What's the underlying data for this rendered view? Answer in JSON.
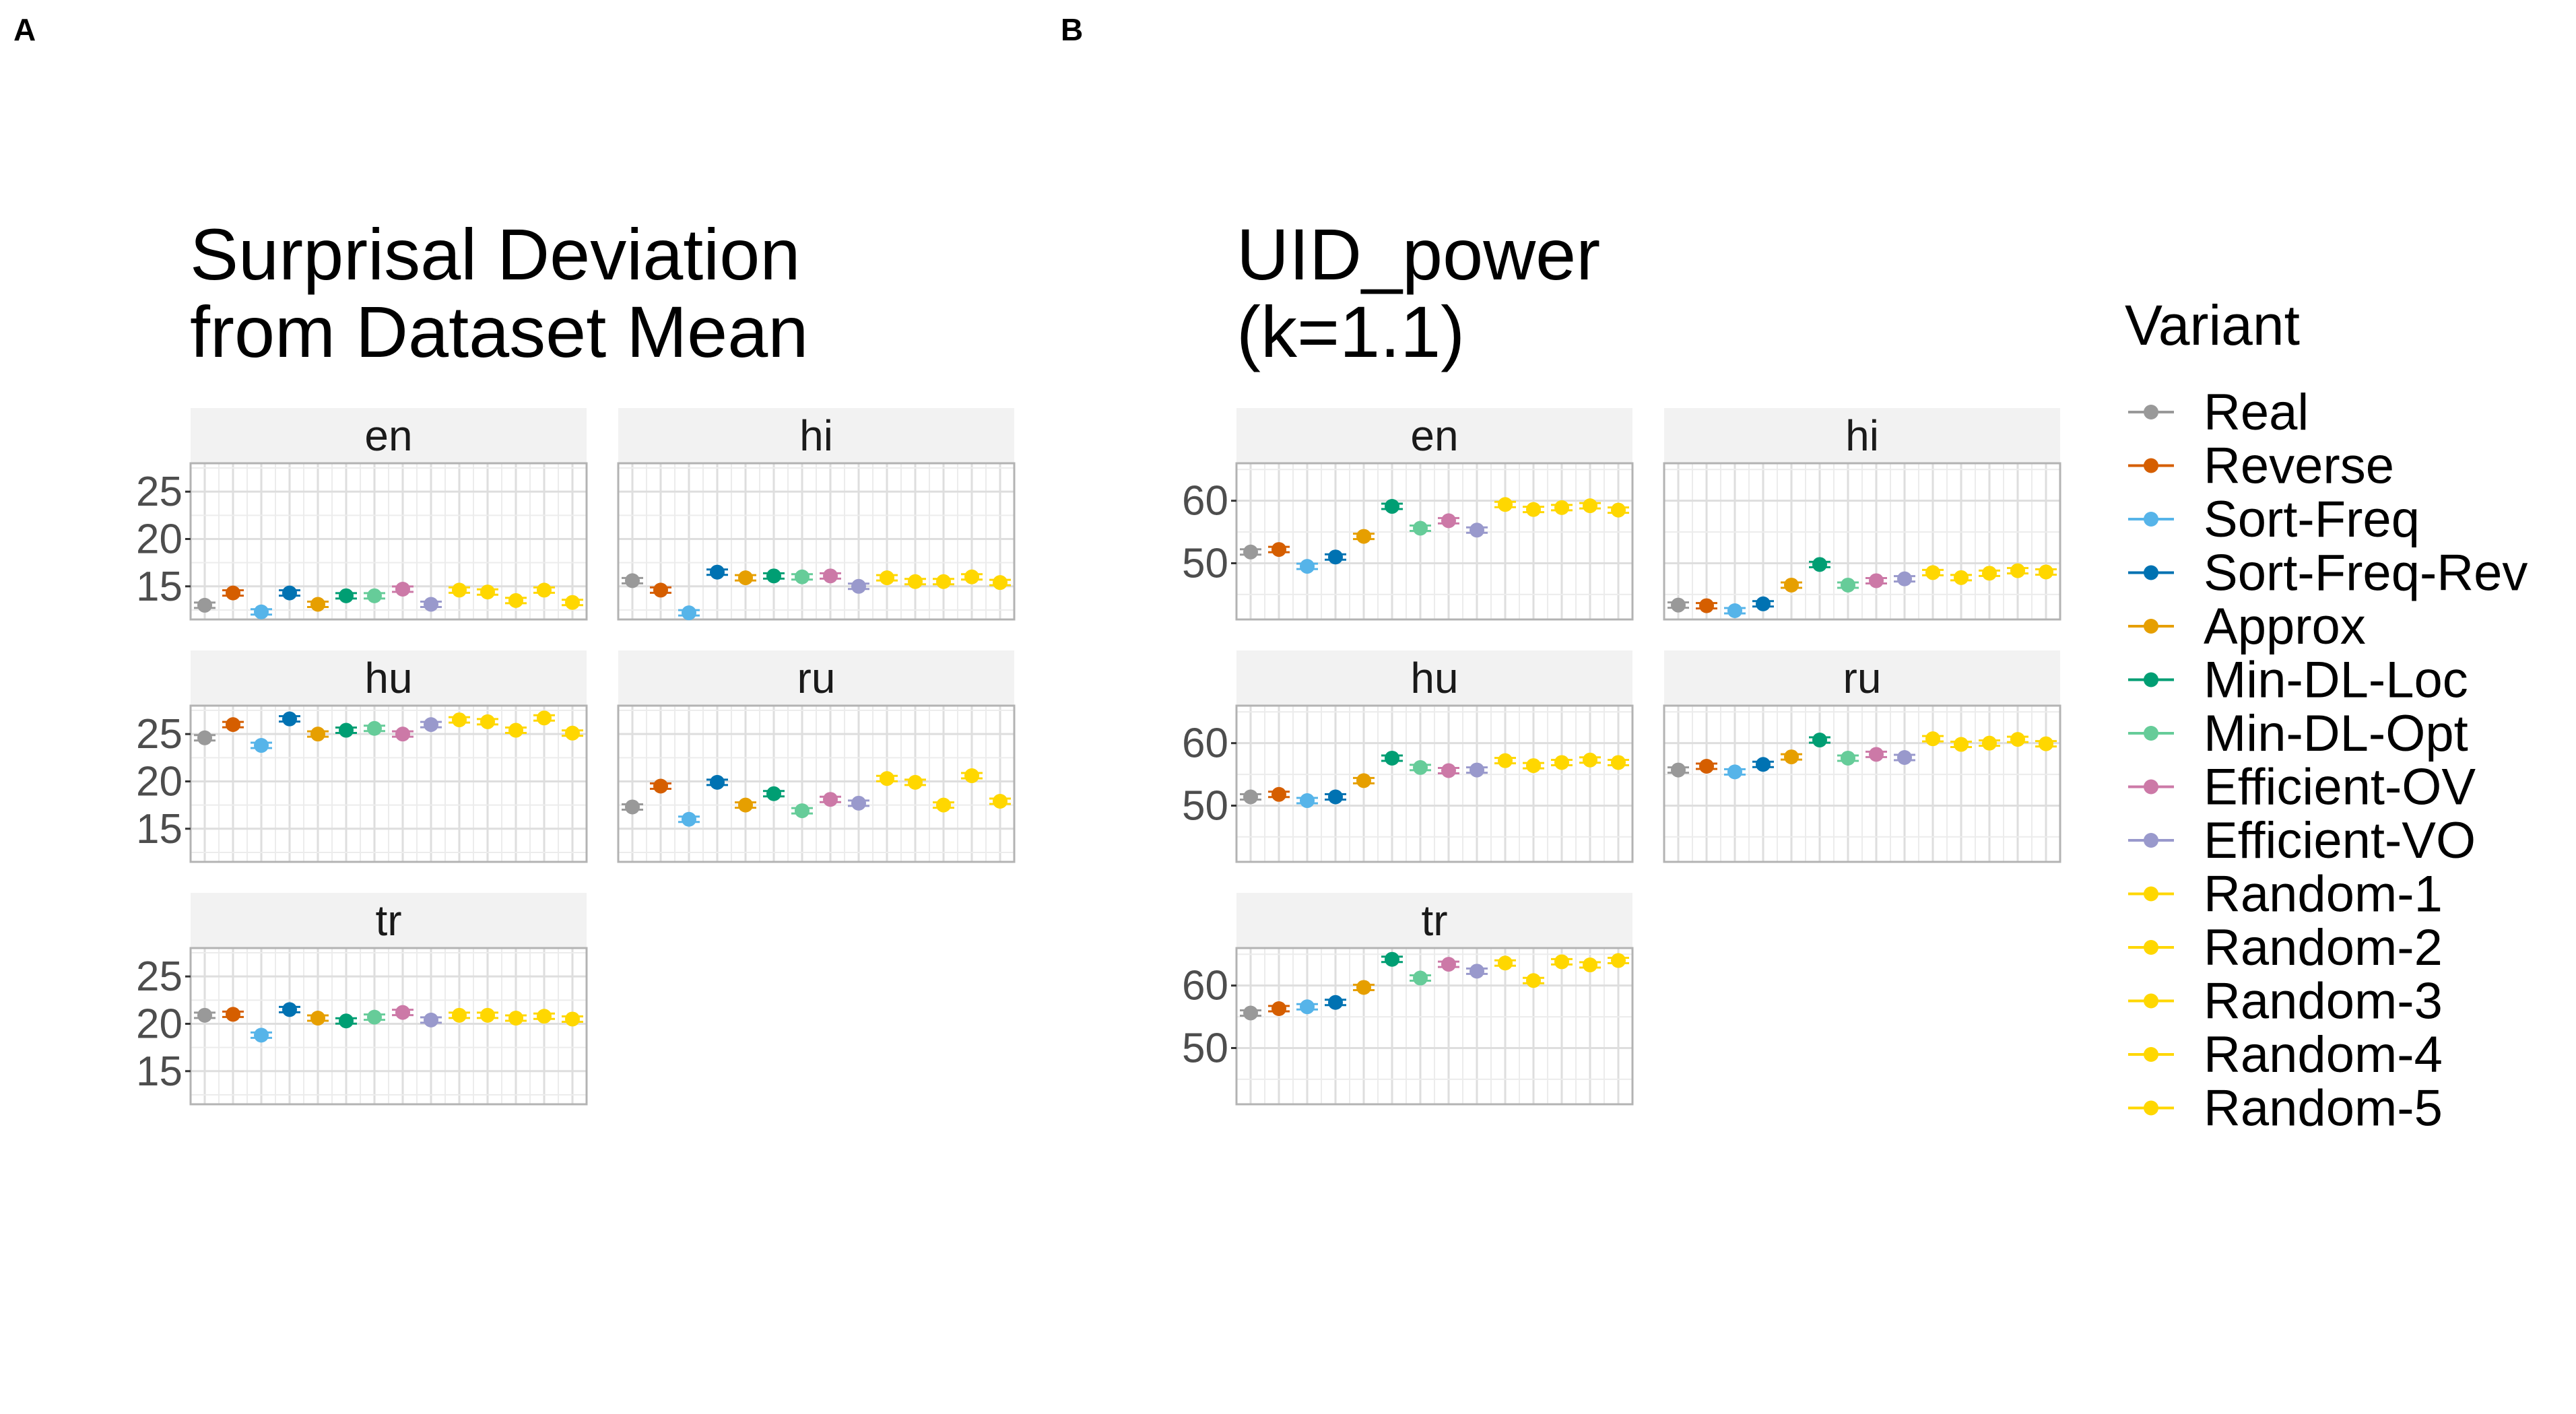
{
  "figure": {
    "panel_a_label": "A",
    "panel_b_label": "B"
  },
  "legend": {
    "title": "Variant",
    "items": [
      {
        "label": "Real",
        "color": "#999999"
      },
      {
        "label": "Reverse",
        "color": "#D55E00"
      },
      {
        "label": "Sort-Freq",
        "color": "#56B4E9"
      },
      {
        "label": "Sort-Freq-Rev",
        "color": "#0072B2"
      },
      {
        "label": "Approx",
        "color": "#E69F00"
      },
      {
        "label": "Min-DL-Loc",
        "color": "#009E73"
      },
      {
        "label": "Min-DL-Opt",
        "color": "#66CC99"
      },
      {
        "label": "Efficient-OV",
        "color": "#CC79A7"
      },
      {
        "label": "Efficient-VO",
        "color": "#9999CC"
      },
      {
        "label": "Random-1",
        "color": "#FFD700"
      },
      {
        "label": "Random-2",
        "color": "#FFD700"
      },
      {
        "label": "Random-3",
        "color": "#FFD700"
      },
      {
        "label": "Random-4",
        "color": "#FFD700"
      },
      {
        "label": "Random-5",
        "color": "#FFD700"
      }
    ]
  },
  "chart_data": [
    {
      "type": "scatter",
      "title_lines": [
        "Surprisal Deviation",
        "from Dataset Mean"
      ],
      "categories": [
        "Real",
        "Reverse",
        "Sort-Freq",
        "Sort-Freq-Rev",
        "Approx",
        "Min-DL-Loc",
        "Min-DL-Opt",
        "Efficient-OV",
        "Efficient-VO",
        "Random-1",
        "Random-2",
        "Random-3",
        "Random-4",
        "Random-5"
      ],
      "yticks": [
        15,
        20,
        25
      ],
      "ylim": [
        11.5,
        28
      ],
      "grid": true,
      "facet_layout": "3 rows x 2 columns",
      "panels": [
        {
          "label": "en",
          "values": [
            13.0,
            14.3,
            12.3,
            14.3,
            13.1,
            14.0,
            14.0,
            14.7,
            13.1,
            14.6,
            14.4,
            13.5,
            14.6,
            13.3
          ]
        },
        {
          "label": "hi",
          "values": [
            15.6,
            14.6,
            12.2,
            16.5,
            15.9,
            16.1,
            16.0,
            16.1,
            15.0,
            15.9,
            15.5,
            15.5,
            16.0,
            15.4
          ]
        },
        {
          "label": "hu",
          "values": [
            24.6,
            26.0,
            23.8,
            26.6,
            25.0,
            25.4,
            25.6,
            25.0,
            26.0,
            26.5,
            26.3,
            25.4,
            26.7,
            25.1
          ]
        },
        {
          "label": "ru",
          "values": [
            17.3,
            19.5,
            16.0,
            19.9,
            17.5,
            18.7,
            16.9,
            18.1,
            17.7,
            20.3,
            19.9,
            17.5,
            20.6,
            17.9
          ]
        },
        {
          "label": "tr",
          "values": [
            20.9,
            21.0,
            18.8,
            21.5,
            20.6,
            20.3,
            20.7,
            21.2,
            20.4,
            20.9,
            20.9,
            20.6,
            20.8,
            20.5
          ]
        }
      ]
    },
    {
      "type": "scatter",
      "title_lines": [
        "UID_power",
        "(k=1.1)"
      ],
      "categories": [
        "Real",
        "Reverse",
        "Sort-Freq",
        "Sort-Freq-Rev",
        "Approx",
        "Min-DL-Loc",
        "Min-DL-Opt",
        "Efficient-OV",
        "Efficient-VO",
        "Random-1",
        "Random-2",
        "Random-3",
        "Random-4",
        "Random-5"
      ],
      "yticks": [
        50,
        60
      ],
      "ylim": [
        41,
        66
      ],
      "grid": true,
      "facet_layout": "3 rows x 2 columns",
      "panels": [
        {
          "label": "en",
          "values": [
            51.8,
            52.2,
            49.5,
            51.0,
            54.3,
            59.1,
            55.6,
            56.8,
            55.3,
            59.4,
            58.6,
            58.9,
            59.2,
            58.5
          ]
        },
        {
          "label": "hi",
          "values": [
            43.3,
            43.2,
            42.4,
            43.5,
            46.5,
            49.8,
            46.5,
            47.2,
            47.5,
            48.5,
            47.7,
            48.4,
            48.8,
            48.6
          ]
        },
        {
          "label": "hu",
          "values": [
            51.4,
            51.8,
            50.8,
            51.4,
            54.0,
            57.6,
            56.1,
            55.6,
            55.7,
            57.2,
            56.4,
            56.9,
            57.3,
            56.9
          ]
        },
        {
          "label": "ru",
          "values": [
            55.7,
            56.3,
            55.4,
            56.6,
            57.8,
            60.5,
            57.6,
            58.2,
            57.7,
            60.7,
            59.8,
            60.0,
            60.6,
            59.9
          ]
        },
        {
          "label": "tr",
          "values": [
            55.6,
            56.3,
            56.6,
            57.3,
            59.7,
            64.2,
            61.2,
            63.4,
            62.3,
            63.6,
            60.8,
            63.8,
            63.3,
            64.0
          ]
        }
      ]
    }
  ]
}
